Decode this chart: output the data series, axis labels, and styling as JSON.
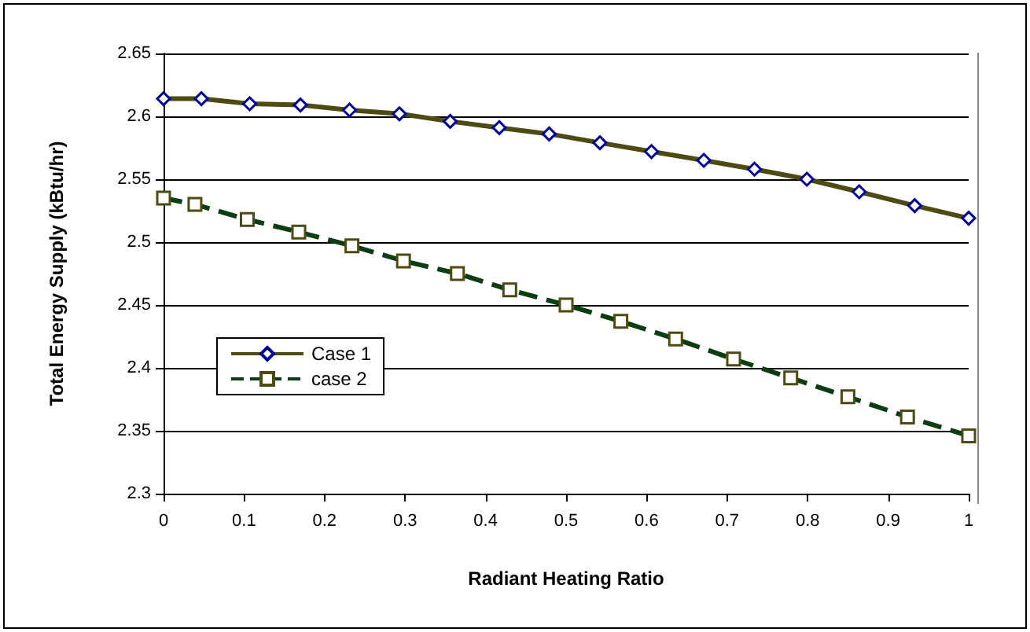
{
  "chart_data": {
    "type": "line",
    "xlabel": "Radiant Heating Ratio",
    "ylabel": "Total Energy Supply (kBtu/hr)",
    "xlim": [
      0,
      1
    ],
    "xticks": [
      0,
      0.1,
      0.2,
      0.3,
      0.4,
      0.5,
      0.6,
      0.7,
      0.8,
      0.9,
      1
    ],
    "ylim": [
      2.3,
      2.65
    ],
    "yticks": [
      2.3,
      2.35,
      2.4,
      2.45,
      2.5,
      2.55,
      2.6,
      2.65
    ],
    "grid": "y",
    "legend": "left",
    "series": [
      {
        "name": "Case 1",
        "color": "#4d4a12",
        "marker": "diamond",
        "line_style": "solid",
        "x": [
          0,
          0.047,
          0.107,
          0.17,
          0.231,
          0.293,
          0.356,
          0.417,
          0.479,
          0.542,
          0.606,
          0.671,
          0.734,
          0.799,
          0.864,
          0.933,
          1
        ],
        "values": [
          2.614,
          2.614,
          2.61,
          2.609,
          2.605,
          2.602,
          2.596,
          2.591,
          2.586,
          2.579,
          2.572,
          2.565,
          2.558,
          2.55,
          2.54,
          2.529,
          2.519
        ]
      },
      {
        "name": "case 2",
        "color": "#0b3d12",
        "marker": "square",
        "line_style": "dashed",
        "x": [
          0,
          0.039,
          0.104,
          0.168,
          0.234,
          0.298,
          0.365,
          0.43,
          0.5,
          0.568,
          0.636,
          0.708,
          0.779,
          0.85,
          0.924,
          1
        ],
        "values": [
          2.535,
          2.53,
          2.518,
          2.508,
          2.497,
          2.485,
          2.475,
          2.462,
          2.45,
          2.437,
          2.423,
          2.407,
          2.392,
          2.377,
          2.361,
          2.346
        ]
      }
    ]
  }
}
